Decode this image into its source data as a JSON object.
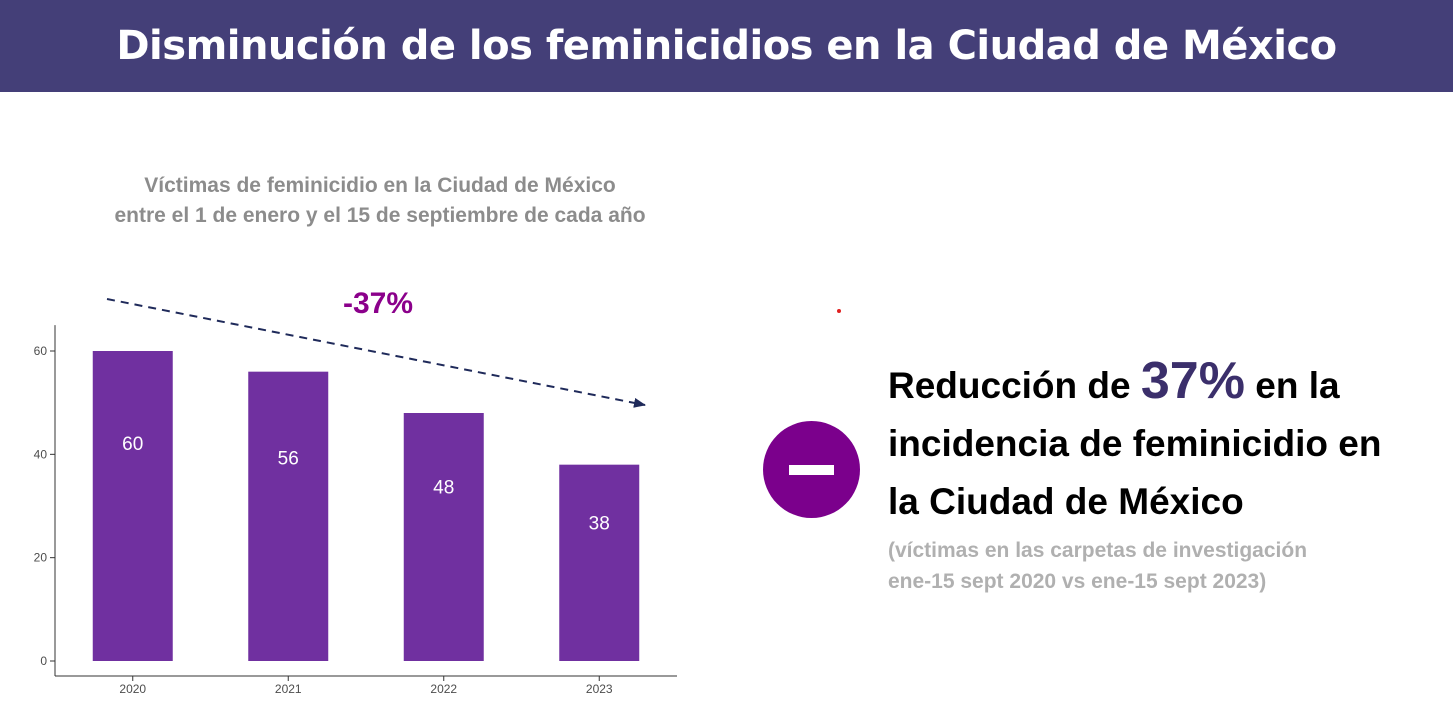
{
  "header": {
    "title": "Disminución de los feminicidios en la Ciudad de México"
  },
  "chart_data": {
    "type": "bar",
    "title_line1": "Víctimas de feminicidio en la Ciudad de México",
    "title_line2": "entre el 1 de enero y el 15 de septiembre de cada año",
    "categories": [
      "2020",
      "2021",
      "2022",
      "2023"
    ],
    "values": [
      60,
      56,
      48,
      38
    ],
    "ylim": [
      0,
      65
    ],
    "yticks": [
      0,
      20,
      40,
      60
    ],
    "bar_color": "#7030a0",
    "annotation": {
      "label": "-37%",
      "color": "#8b008b",
      "arrow_color": "#1f2a5a"
    },
    "grid": false,
    "legend": "none"
  },
  "summary": {
    "headline_pre": "Reducción de",
    "headline_value": "37%",
    "headline_post": "en la",
    "headline_line2": "incidencia de feminicidio en",
    "headline_line3": "la Ciudad de México",
    "note_line1": "(víctimas en las carpetas de investigación",
    "note_line2": "ene-15 sept 2020 vs ene-15 sept 2023)",
    "icon": "minus-circle-icon",
    "icon_color": "#7b008c"
  }
}
